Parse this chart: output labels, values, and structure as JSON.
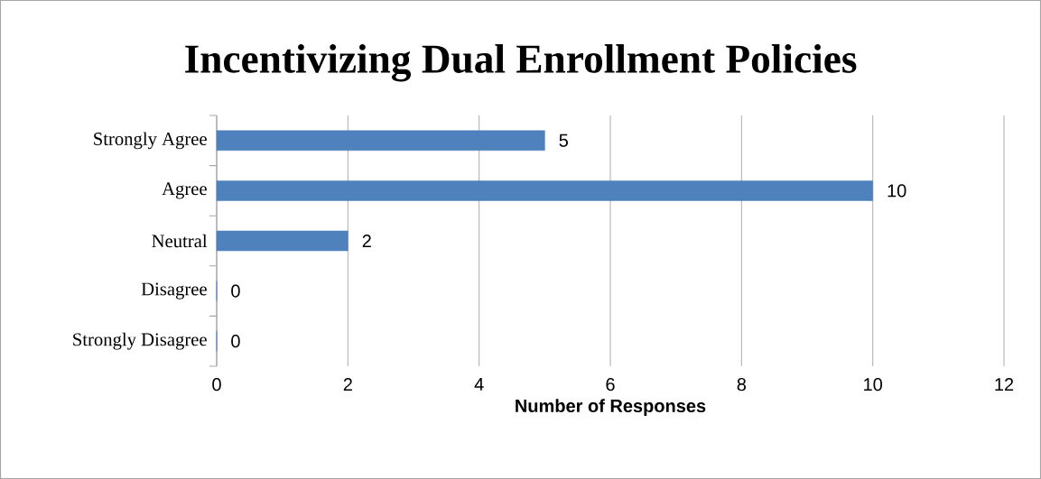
{
  "chart_data": {
    "type": "bar",
    "orientation": "horizontal",
    "title": "Incentivizing Dual Enrollment Policies",
    "xlabel": "Number of Responses",
    "categories": [
      "Strongly Agree",
      "Agree",
      "Neutral",
      "Disagree",
      "Strongly Disagree"
    ],
    "values": [
      5,
      10,
      2,
      0,
      0
    ],
    "color": "#4f81bd",
    "xlim": [
      0,
      12
    ],
    "xticks": [
      0,
      2,
      4,
      6,
      8,
      10,
      12
    ],
    "grid": "x",
    "data_labels": true
  }
}
